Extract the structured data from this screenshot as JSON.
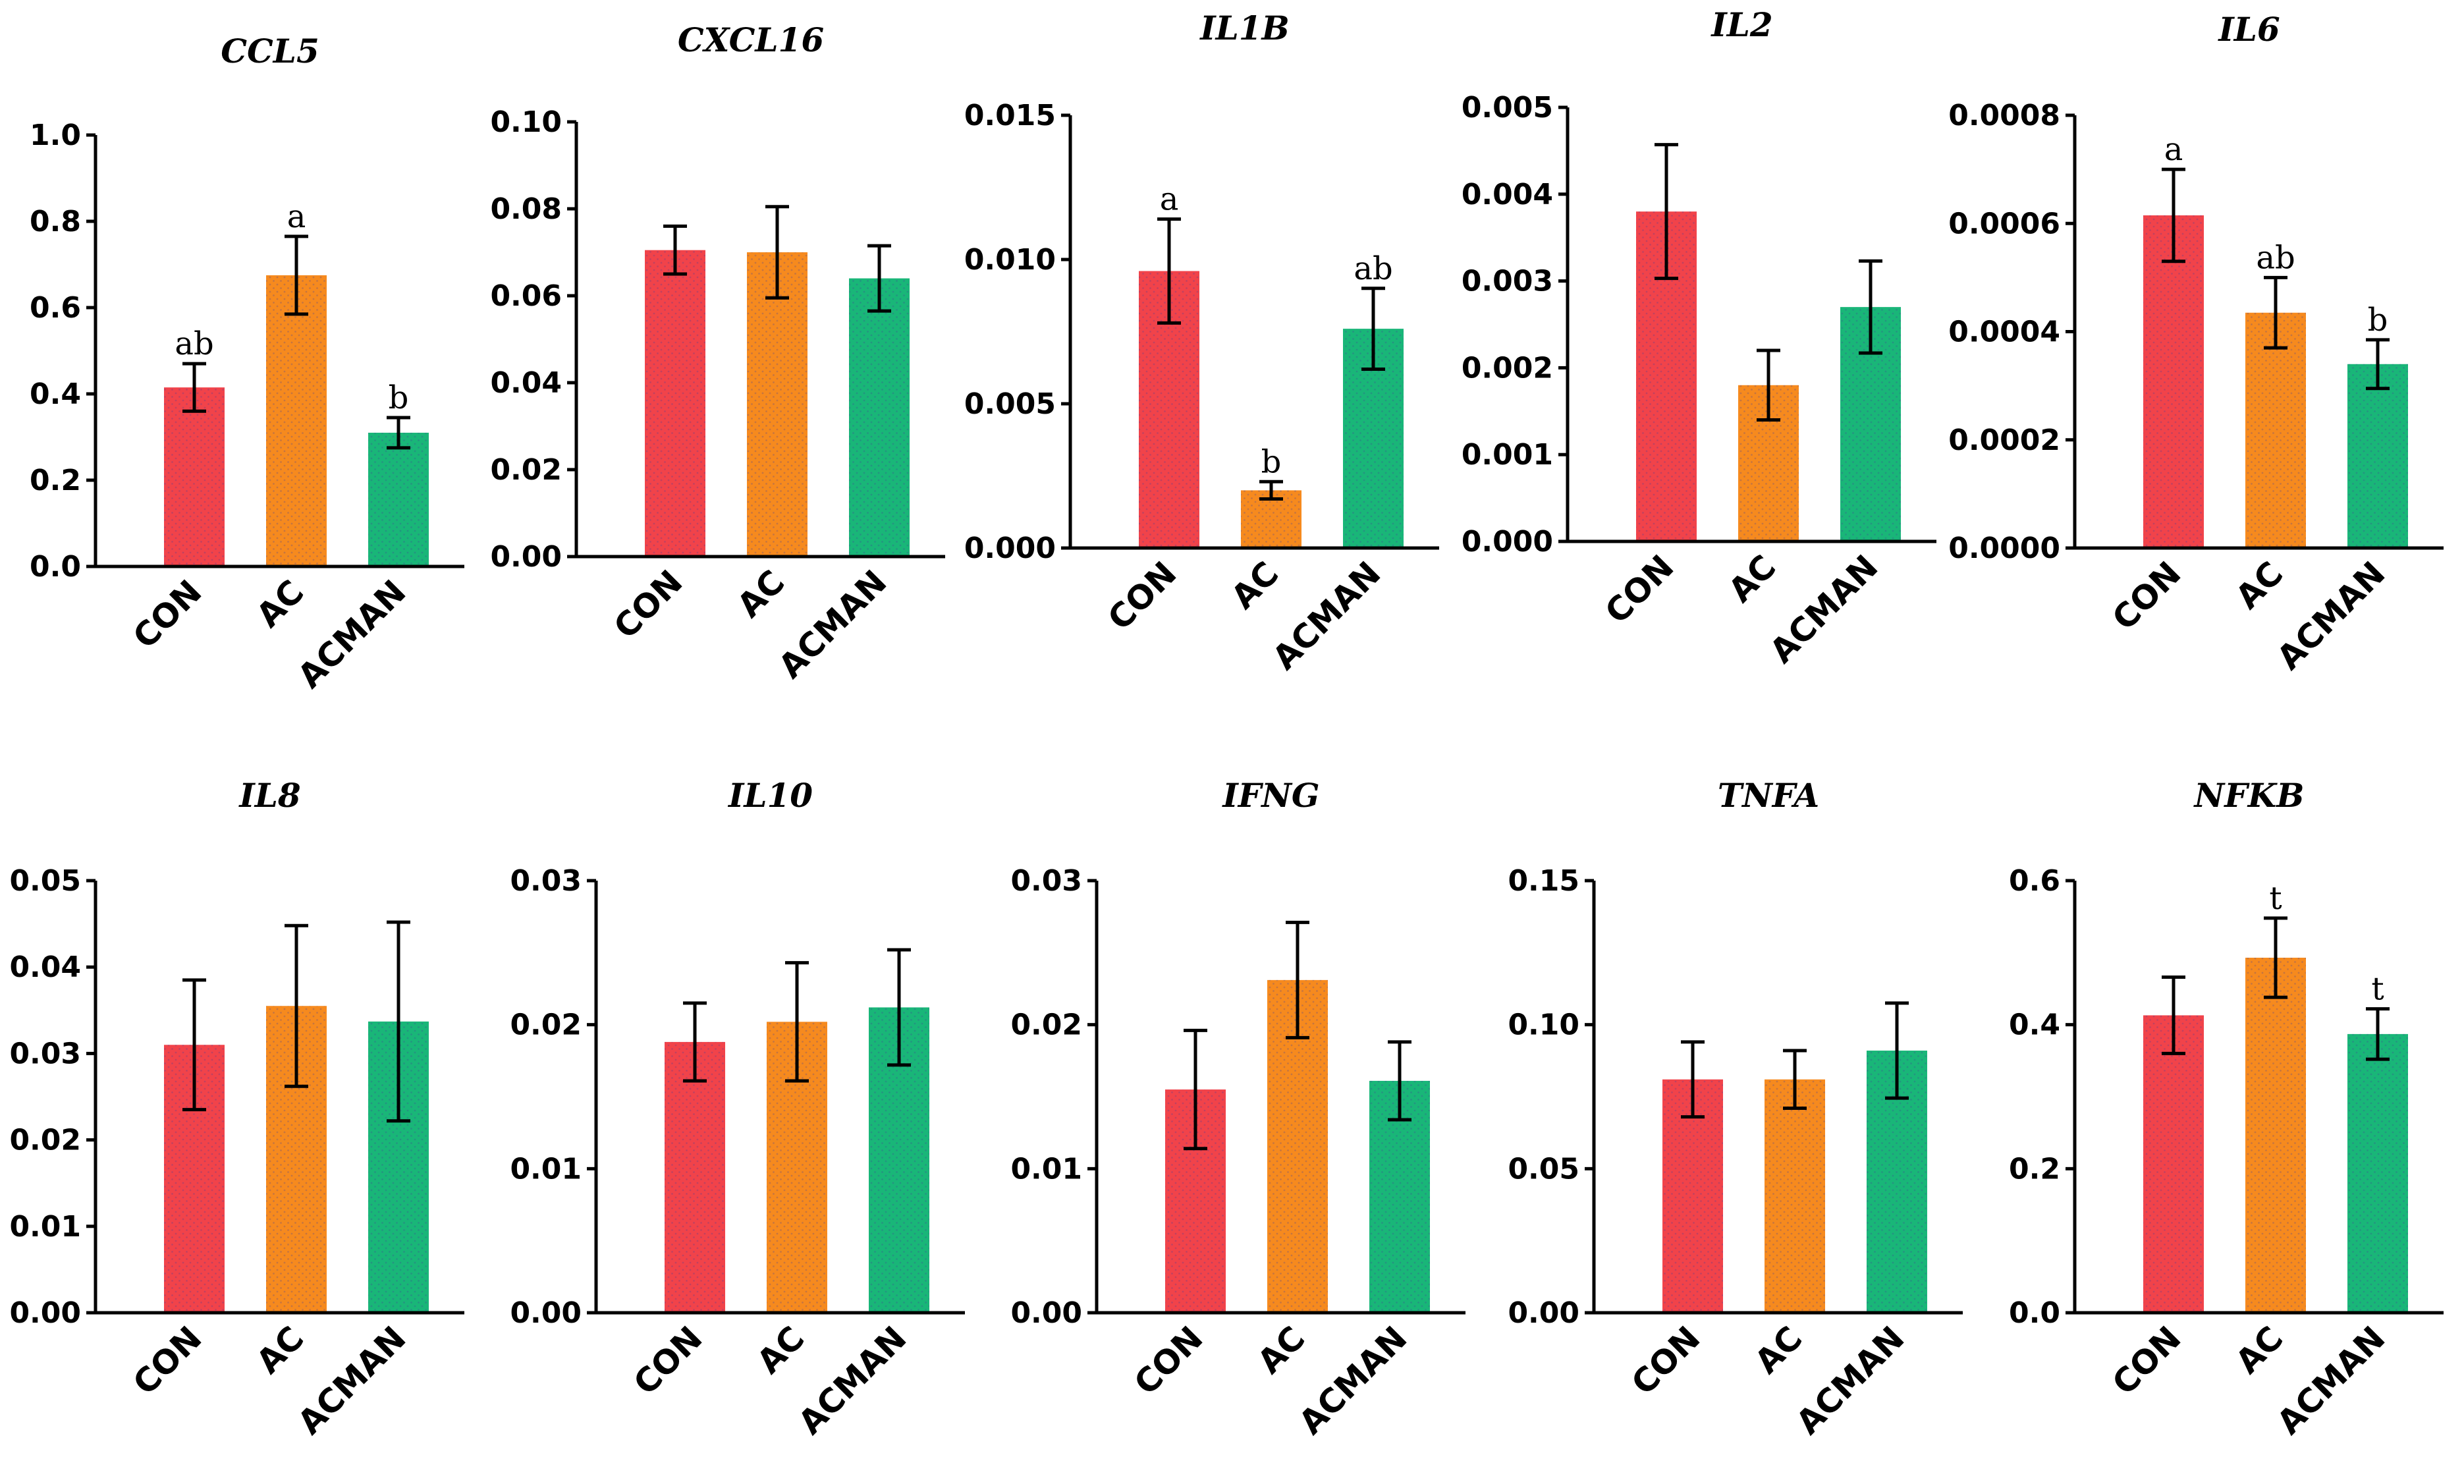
{
  "colors": {
    "CON": "#f1434a",
    "AC": "#f68a1e",
    "ACMAN": "#19b678"
  },
  "chart_data": [
    {
      "type": "bar",
      "title": "CCL5",
      "categories": [
        "CON",
        "AC",
        "ACMAN"
      ],
      "values": [
        0.415,
        0.675,
        0.31
      ],
      "errors": [
        0.055,
        0.09,
        0.035
      ],
      "ylim": [
        0,
        1.0
      ],
      "yticks": [
        "0.0",
        "0.2",
        "0.4",
        "0.6",
        "0.8",
        "1.0"
      ],
      "letters": [
        "ab",
        "a",
        "b"
      ]
    },
    {
      "type": "bar",
      "title": "CXCL16",
      "categories": [
        "CON",
        "AC",
        "ACMAN"
      ],
      "values": [
        0.0705,
        0.07,
        0.064
      ],
      "errors": [
        0.0055,
        0.0105,
        0.0075
      ],
      "ylim": [
        0,
        0.1
      ],
      "yticks": [
        "0.00",
        "0.02",
        "0.04",
        "0.06",
        "0.08",
        "0.10"
      ],
      "letters": [
        "",
        "",
        ""
      ]
    },
    {
      "type": "bar",
      "title": "IL1B",
      "categories": [
        "CON",
        "AC",
        "ACMAN"
      ],
      "values": [
        0.0096,
        0.002,
        0.0076
      ],
      "errors": [
        0.0018,
        0.0003,
        0.0014
      ],
      "ylim": [
        0,
        0.015
      ],
      "yticks": [
        "0.000",
        "0.005",
        "0.010",
        "0.015"
      ],
      "letters": [
        "a",
        "b",
        "ab"
      ]
    },
    {
      "type": "bar",
      "title": "IL2",
      "categories": [
        "CON",
        "AC",
        "ACMAN"
      ],
      "values": [
        0.0038,
        0.0018,
        0.0027
      ],
      "errors": [
        0.00077,
        0.0004,
        0.00053
      ],
      "ylim": [
        0,
        0.005
      ],
      "yticks": [
        "0.000",
        "0.001",
        "0.002",
        "0.003",
        "0.004",
        "0.005"
      ],
      "letters": [
        "",
        "",
        ""
      ]
    },
    {
      "type": "bar",
      "title": "IL6",
      "categories": [
        "CON",
        "AC",
        "ACMAN"
      ],
      "values": [
        0.000615,
        0.000435,
        0.00034
      ],
      "errors": [
        8.5e-05,
        6.5e-05,
        4.5e-05
      ],
      "ylim": [
        0,
        0.0008
      ],
      "yticks": [
        "0.0000",
        "0.0002",
        "0.0004",
        "0.0006",
        "0.0008"
      ],
      "letters": [
        "a",
        "ab",
        "b"
      ]
    },
    {
      "type": "bar",
      "title": "IL8",
      "categories": [
        "CON",
        "AC",
        "ACMAN"
      ],
      "values": [
        0.031,
        0.0355,
        0.0337
      ],
      "errors": [
        0.0075,
        0.0093,
        0.0115
      ],
      "ylim": [
        0,
        0.05
      ],
      "yticks": [
        "0.00",
        "0.01",
        "0.02",
        "0.03",
        "0.04",
        "0.05"
      ],
      "letters": [
        "",
        "",
        ""
      ]
    },
    {
      "type": "bar",
      "title": "IL10",
      "categories": [
        "CON",
        "AC",
        "ACMAN"
      ],
      "values": [
        0.0188,
        0.0202,
        0.0212
      ],
      "errors": [
        0.0027,
        0.0041,
        0.004
      ],
      "ylim": [
        0,
        0.03
      ],
      "yticks": [
        "0.00",
        "0.01",
        "0.02",
        "0.03"
      ],
      "letters": [
        "",
        "",
        ""
      ]
    },
    {
      "type": "bar",
      "title": "IFNG",
      "categories": [
        "CON",
        "AC",
        "ACMAN"
      ],
      "values": [
        0.0155,
        0.0231,
        0.0161
      ],
      "errors": [
        0.0041,
        0.004,
        0.0027
      ],
      "ylim": [
        0,
        0.03
      ],
      "yticks": [
        "0.00",
        "0.01",
        "0.02",
        "0.03"
      ],
      "letters": [
        "",
        "",
        ""
      ]
    },
    {
      "type": "bar",
      "title": "TNFA",
      "categories": [
        "CON",
        "AC",
        "ACMAN"
      ],
      "values": [
        0.081,
        0.081,
        0.091
      ],
      "errors": [
        0.013,
        0.01,
        0.0165
      ],
      "ylim": [
        0,
        0.15
      ],
      "yticks": [
        "0.00",
        "0.05",
        "0.10",
        "0.15"
      ],
      "letters": [
        "",
        "",
        ""
      ]
    },
    {
      "type": "bar",
      "title": "NFKB",
      "categories": [
        "CON",
        "AC",
        "ACMAN"
      ],
      "values": [
        0.413,
        0.493,
        0.387
      ],
      "errors": [
        0.053,
        0.055,
        0.035
      ],
      "ylim": [
        0,
        0.6
      ],
      "yticks": [
        "0.0",
        "0.2",
        "0.4",
        "0.6"
      ],
      "letters": [
        "",
        "t",
        "t"
      ]
    }
  ]
}
